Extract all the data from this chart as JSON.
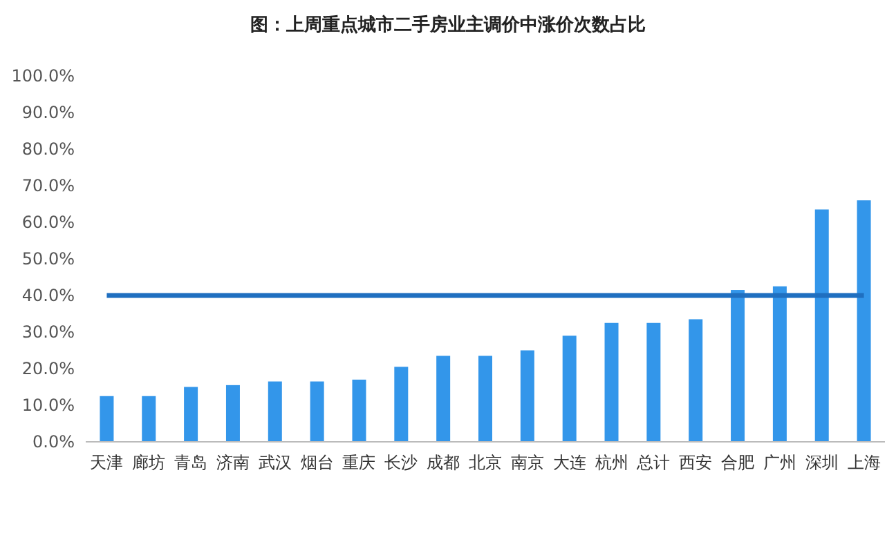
{
  "chart_data": {
    "type": "bar",
    "title": "图：上周重点城市二手房业主调价中涨价次数占比",
    "categories": [
      "天津",
      "廊坊",
      "青岛",
      "济南",
      "武汉",
      "烟台",
      "重庆",
      "长沙",
      "成都",
      "北京",
      "南京",
      "大连",
      "杭州",
      "总计",
      "西安",
      "合肥",
      "广州",
      "深圳",
      "上海"
    ],
    "values": [
      12.5,
      12.5,
      15,
      15.5,
      16.5,
      16.5,
      17,
      20.5,
      23.5,
      23.5,
      25,
      29,
      32.5,
      32.5,
      33.5,
      41.5,
      42.5,
      63.5,
      66
    ],
    "color": "#3396ea",
    "ylim": [
      0,
      100
    ],
    "yticks": [
      {
        "value": 0,
        "label": "0.0%"
      },
      {
        "value": 10,
        "label": "10.0%"
      },
      {
        "value": 20,
        "label": "20.0%"
      },
      {
        "value": 30,
        "label": "30.0%"
      },
      {
        "value": 40,
        "label": "40.0%"
      },
      {
        "value": 50,
        "label": "50.0%"
      },
      {
        "value": 60,
        "label": "60.0%"
      },
      {
        "value": 70,
        "label": "70.0%"
      },
      {
        "value": 80,
        "label": "80.0%"
      },
      {
        "value": 90,
        "label": "90.0%"
      },
      {
        "value": 100,
        "label": "100.0%"
      }
    ],
    "ref_lines": [
      {
        "axis": "y",
        "value": 40,
        "color": "#1f6fc0"
      }
    ],
    "grid": false
  }
}
